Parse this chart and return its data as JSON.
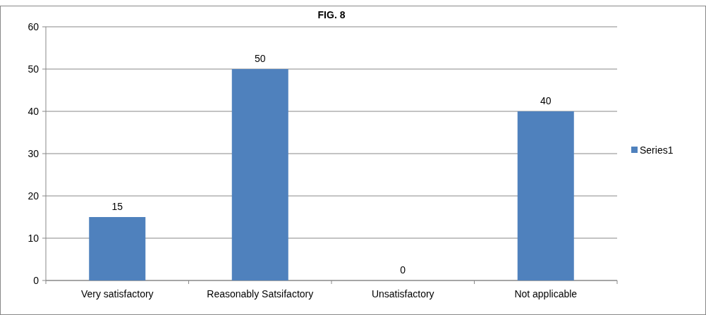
{
  "chart_data": {
    "type": "bar",
    "title": "FIG. 8",
    "categories": [
      "Very satisfactory",
      "Reasonably Satsifactory",
      "Unsatisfactory",
      "Not applicable"
    ],
    "series": [
      {
        "name": "Series1",
        "color": "#4f81bd",
        "values": [
          15,
          50,
          0,
          40
        ]
      }
    ],
    "ylim": [
      0,
      60
    ],
    "yticks": [
      0,
      10,
      20,
      30,
      40,
      50,
      60
    ],
    "grid": "y",
    "legend": "right",
    "data_labels": true
  }
}
